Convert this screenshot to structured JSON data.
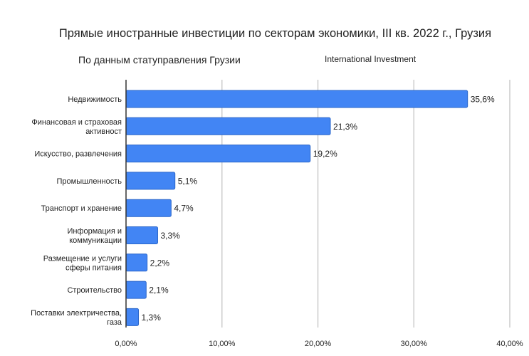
{
  "chart_data": {
    "type": "bar",
    "orientation": "horizontal",
    "title": "Прямые иностранные инвестиции по секторам экономики, III кв. 2022 г., Грузия",
    "subtitle": "По данным статуправления Грузии",
    "source_note": "International Investment",
    "categories": [
      [
        "Недвижимость"
      ],
      [
        "Финансовая и страховая",
        "активност"
      ],
      [
        "Искусство, развлечения"
      ],
      [
        "Промышленность"
      ],
      [
        "Транспорт и хранение"
      ],
      [
        "Информация и",
        "коммуникации"
      ],
      [
        "Размещение и услуги",
        "сферы питания"
      ],
      [
        "Строительство"
      ],
      [
        "Поставки электричества,",
        "газа"
      ]
    ],
    "values": [
      35.6,
      21.3,
      19.2,
      5.1,
      4.7,
      3.3,
      2.2,
      2.1,
      1.3
    ],
    "data_labels": [
      "35,6%",
      "21,3%",
      "19,2%",
      "5,1%",
      "4,7%",
      "3,3%",
      "2,2%",
      "2,1%",
      "1,3%"
    ],
    "xlim": [
      0,
      40
    ],
    "xticks": [
      0,
      10,
      20,
      30,
      40
    ],
    "xtick_labels": [
      "0,00%",
      "10,00%",
      "20,00%",
      "30,00%",
      "40,00%"
    ],
    "grid": true,
    "colors": {
      "bar": "#4285f4",
      "bar_edge": "#2a66c9",
      "grid": "#cccccc",
      "axis": "#333333"
    }
  }
}
